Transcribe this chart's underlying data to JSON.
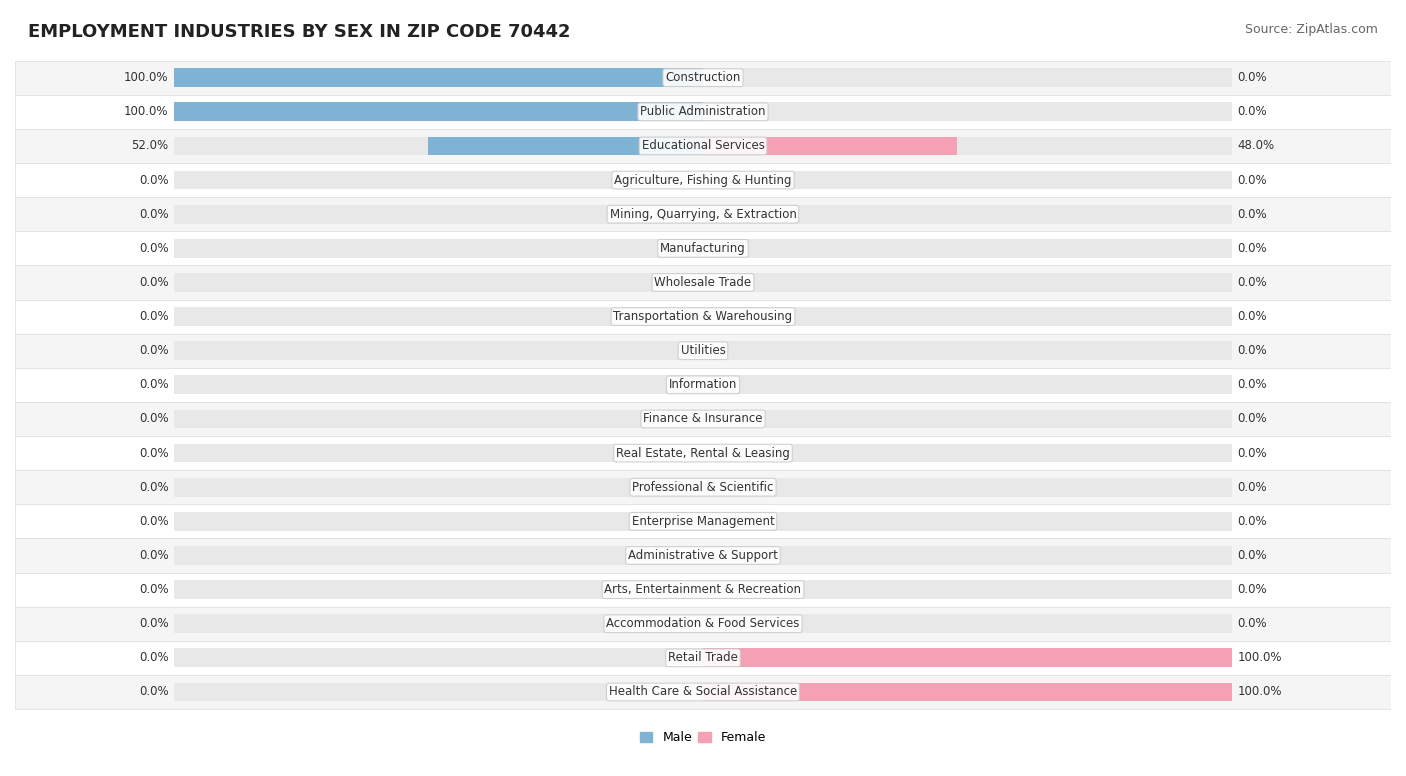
{
  "title": "EMPLOYMENT INDUSTRIES BY SEX IN ZIP CODE 70442",
  "source": "Source: ZipAtlas.com",
  "industries": [
    "Construction",
    "Public Administration",
    "Educational Services",
    "Agriculture, Fishing & Hunting",
    "Mining, Quarrying, & Extraction",
    "Manufacturing",
    "Wholesale Trade",
    "Transportation & Warehousing",
    "Utilities",
    "Information",
    "Finance & Insurance",
    "Real Estate, Rental & Leasing",
    "Professional & Scientific",
    "Enterprise Management",
    "Administrative & Support",
    "Arts, Entertainment & Recreation",
    "Accommodation & Food Services",
    "Retail Trade",
    "Health Care & Social Assistance"
  ],
  "male": [
    100.0,
    100.0,
    52.0,
    0.0,
    0.0,
    0.0,
    0.0,
    0.0,
    0.0,
    0.0,
    0.0,
    0.0,
    0.0,
    0.0,
    0.0,
    0.0,
    0.0,
    0.0,
    0.0
  ],
  "female": [
    0.0,
    0.0,
    48.0,
    0.0,
    0.0,
    0.0,
    0.0,
    0.0,
    0.0,
    0.0,
    0.0,
    0.0,
    0.0,
    0.0,
    0.0,
    0.0,
    0.0,
    100.0,
    100.0
  ],
  "male_color": "#7fb3d3",
  "female_color": "#f4a0b5",
  "bar_bg_color": "#e8e8e8",
  "row_bg_color": "#f5f5f5",
  "row_alt_color": "#ffffff",
  "title_fontsize": 13,
  "label_fontsize": 8.5,
  "source_fontsize": 9,
  "legend_fontsize": 9,
  "bar_height": 0.55,
  "figsize": [
    14.06,
    7.76
  ]
}
